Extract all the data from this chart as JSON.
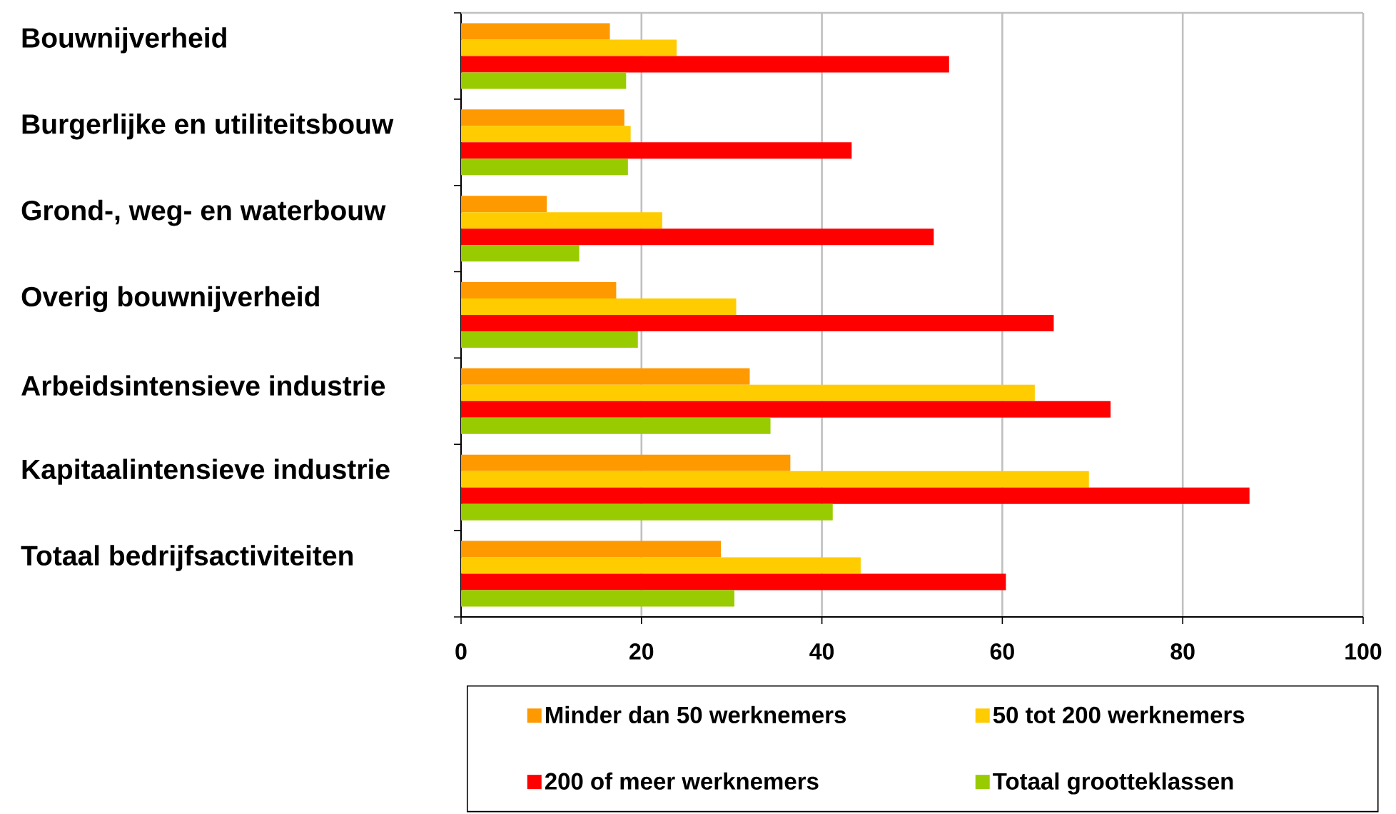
{
  "chart_data": {
    "type": "bar",
    "orientation": "horizontal",
    "categories": [
      "Bouwnijverheid",
      "Burgerlijke en utiliteitsbouw",
      "Grond-, weg- en waterbouw",
      "Overig bouwnijverheid",
      "Arbeidsintensieve industrie",
      "Kapitaalintensieve industrie",
      "Totaal bedrijfsactiviteiten"
    ],
    "series": [
      {
        "name": "Minder dan 50 werknemers",
        "color": "#ff9900",
        "values": [
          16.5,
          18.1,
          9.5,
          17.2,
          32.0,
          36.5,
          28.8
        ]
      },
      {
        "name": "50 tot 200 werknemers",
        "color": "#ffcc00",
        "values": [
          23.9,
          18.8,
          22.3,
          30.5,
          63.6,
          69.6,
          44.3
        ]
      },
      {
        "name": "200 of meer werknemers",
        "color": "#ff0000",
        "values": [
          54.1,
          43.3,
          52.4,
          65.7,
          72.0,
          87.4,
          60.4
        ]
      },
      {
        "name": "Totaal grootteklassen",
        "color": "#99cc00",
        "values": [
          18.3,
          18.5,
          13.1,
          19.6,
          34.3,
          41.2,
          30.3
        ]
      }
    ],
    "xlim": [
      0,
      100
    ],
    "xticks": [
      0,
      20,
      40,
      60,
      80,
      100
    ],
    "grid": "x",
    "legend": "bottom"
  }
}
